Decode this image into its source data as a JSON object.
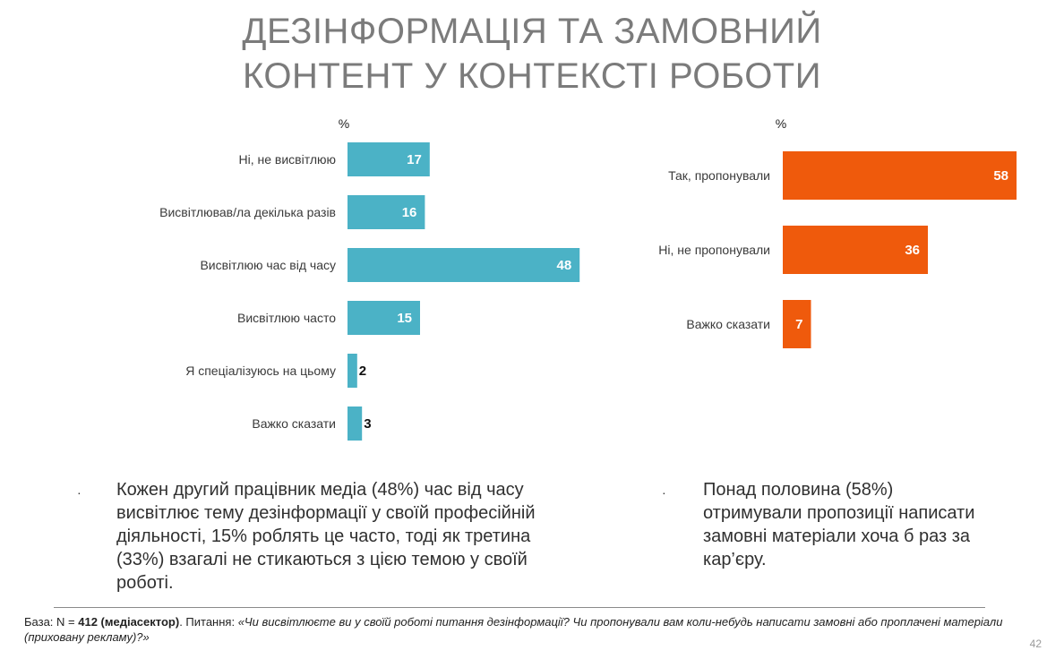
{
  "title": {
    "line1": "ДЕЗІНФОРМАЦІЯ ТА ЗАМОВНИЙ",
    "line2": "КОНТЕНТ У КОНТЕКСТІ РОБОТИ"
  },
  "colors": {
    "teal": "#4bb2c6",
    "orange": "#ef5a0c",
    "text": "#3a3a3a",
    "title": "#7b7b7b"
  },
  "chart_data": [
    {
      "type": "bar",
      "orientation": "horizontal",
      "unit_label": "%",
      "categories": [
        "Ні, не висвітлюю",
        "Висвітлював/ла декілька разів",
        "Висвітлюю час від часу",
        "Висвітлюю часто",
        "Я спеціалізуюсь на цьому",
        "Важко сказати"
      ],
      "values": [
        17,
        16,
        48,
        15,
        2,
        3
      ],
      "color": "#4bb2c6"
    },
    {
      "type": "bar",
      "orientation": "horizontal",
      "unit_label": "%",
      "categories": [
        "Так, пропонували",
        "Ні, не пропонували",
        "Важко сказати"
      ],
      "values": [
        58,
        36,
        7
      ],
      "color": "#ef5a0c"
    }
  ],
  "bullets": {
    "left": {
      "marker": "·",
      "lines": [
        "Кожен другий працівник медіа (48%) час від часу",
        "висвітлює тему дезінформації у своїй професійній",
        "діяльності, 15% роблять це часто, тоді як третина",
        "(33%) взагалі не стикаються з цією темою у своїй",
        "роботі."
      ]
    },
    "right": {
      "marker": "·",
      "lines": [
        "Понад половина (58%)",
        "отримували пропозиції написати",
        "замовні матеріали хоча б раз за",
        "кар’єру."
      ]
    }
  },
  "footnote": {
    "base_prefix": "База: N = ",
    "base_bold": "412 (медіасектор)",
    "question_prefix": ". Питання: ",
    "question_text": "«Чи висвітлюєте ви у своїй роботі питання дезінформації? Чи пропонували вам коли-небудь написати замовні або проплачені матеріали (приховану рекламу)?»"
  },
  "page_number": "42"
}
